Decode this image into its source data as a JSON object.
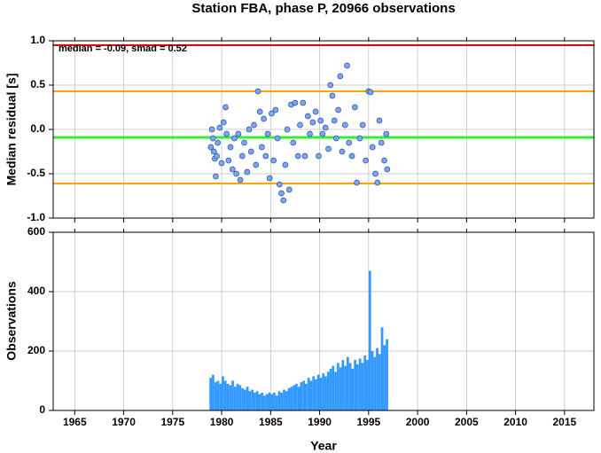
{
  "chart_data": [
    {
      "type": "scatter",
      "title": "Station FBA, phase P, 20966 observations",
      "y_label": "Median residual [s]",
      "annotation": "median = -0.09, smad = 0.52",
      "xlim": [
        1962.8,
        2018
      ],
      "xticks": [
        1965,
        1970,
        1975,
        1980,
        1985,
        1990,
        1995,
        2000,
        2005,
        2010,
        2015
      ],
      "ylim": [
        -1,
        1
      ],
      "yticks": [
        {
          "value": -1,
          "label": "-1.0"
        },
        -0.5,
        {
          "value": 0,
          "label": "0.0"
        },
        0.5,
        {
          "value": 1,
          "label": "1.0"
        }
      ],
      "grid": true,
      "color": "#7aa6f2",
      "hlines": [
        {
          "value": 0.95,
          "color": "#e00000"
        },
        {
          "value": 0.43,
          "color": "#ffa500"
        },
        {
          "value": -0.09,
          "color": "#33ee33"
        },
        {
          "value": -0.61,
          "color": "#ffa500"
        }
      ],
      "x": [
        1978.9,
        1979.0,
        1979.1,
        1979.2,
        1979.3,
        1979.4,
        1979.5,
        1979.6,
        1979.8,
        1980.0,
        1980.2,
        1980.4,
        1980.5,
        1980.7,
        1980.9,
        1981.1,
        1981.3,
        1981.5,
        1981.7,
        1981.9,
        1982.1,
        1982.3,
        1982.6,
        1982.8,
        1983.0,
        1983.3,
        1983.5,
        1983.7,
        1983.9,
        1984.1,
        1984.3,
        1984.5,
        1984.7,
        1984.9,
        1985.1,
        1985.3,
        1985.5,
        1985.7,
        1985.9,
        1986.1,
        1986.3,
        1986.5,
        1986.7,
        1986.9,
        1987.1,
        1987.3,
        1987.5,
        1987.8,
        1988.0,
        1988.3,
        1988.5,
        1988.8,
        1989.0,
        1989.3,
        1989.6,
        1989.9,
        1990.1,
        1990.3,
        1990.6,
        1990.9,
        1991.1,
        1991.3,
        1991.5,
        1991.7,
        1991.9,
        1992.1,
        1992.3,
        1992.6,
        1992.8,
        1993.0,
        1993.3,
        1993.6,
        1993.8,
        1994.1,
        1994.4,
        1994.7,
        1995.0,
        1995.2,
        1995.4,
        1995.7,
        1995.9,
        1996.1,
        1996.3,
        1996.6,
        1996.8,
        1996.9
      ],
      "values": [
        -0.2,
        0.0,
        -0.1,
        -0.25,
        -0.33,
        -0.53,
        -0.3,
        -0.15,
        0.02,
        -0.38,
        0.08,
        0.25,
        -0.05,
        -0.35,
        -0.2,
        -0.45,
        -0.1,
        -0.5,
        -0.05,
        -0.57,
        -0.3,
        -0.15,
        -0.48,
        0.0,
        -0.25,
        0.05,
        -0.4,
        0.43,
        0.2,
        -0.2,
        0.12,
        -0.3,
        -0.05,
        -0.55,
        0.18,
        -0.35,
        0.22,
        -0.1,
        -0.62,
        -0.72,
        -0.8,
        -0.4,
        0.0,
        -0.68,
        0.28,
        -0.15,
        0.3,
        -0.3,
        0.05,
        0.3,
        -0.3,
        0.15,
        -0.05,
        0.08,
        0.2,
        -0.3,
        0.1,
        -0.05,
        0.02,
        -0.22,
        0.5,
        0.38,
        0.1,
        -0.1,
        0.22,
        0.6,
        -0.25,
        0.05,
        0.72,
        -0.15,
        -0.3,
        0.25,
        -0.6,
        -0.1,
        0.05,
        -0.35,
        0.43,
        0.42,
        -0.2,
        -0.5,
        -0.6,
        0.1,
        -0.15,
        -0.35,
        -0.05,
        -0.45
      ]
    },
    {
      "type": "bar",
      "y_label": "Observations",
      "x_label": "Year",
      "xlim": [
        1962.8,
        2018
      ],
      "xticks": [
        1965,
        1970,
        1975,
        1980,
        1985,
        1990,
        1995,
        2000,
        2005,
        2010,
        2015
      ],
      "ylim": [
        0,
        600
      ],
      "yticks": [
        0,
        200,
        400,
        600
      ],
      "grid": true,
      "color": "#3399ff",
      "x": [
        1978.75,
        1979,
        1979.25,
        1979.5,
        1979.75,
        1980,
        1980.25,
        1980.5,
        1980.75,
        1981,
        1981.25,
        1981.5,
        1981.75,
        1982,
        1982.25,
        1982.5,
        1982.75,
        1983,
        1983.25,
        1983.5,
        1983.75,
        1984,
        1984.25,
        1984.5,
        1984.75,
        1985,
        1985.25,
        1985.5,
        1985.75,
        1986,
        1986.25,
        1986.5,
        1986.75,
        1987,
        1987.25,
        1987.5,
        1987.75,
        1988,
        1988.25,
        1988.5,
        1988.75,
        1989,
        1989.25,
        1989.5,
        1989.75,
        1990,
        1990.25,
        1990.5,
        1990.75,
        1991,
        1991.25,
        1991.5,
        1991.75,
        1992,
        1992.25,
        1992.5,
        1992.75,
        1993,
        1993.25,
        1993.5,
        1993.75,
        1994,
        1994.25,
        1994.5,
        1994.75,
        1995,
        1995.25,
        1995.5,
        1995.75,
        1996,
        1996.25,
        1996.5,
        1996.75
      ],
      "values": [
        110,
        120,
        95,
        100,
        90,
        115,
        100,
        90,
        85,
        100,
        80,
        90,
        85,
        75,
        70,
        80,
        65,
        70,
        60,
        65,
        55,
        60,
        50,
        55,
        60,
        55,
        60,
        50,
        65,
        60,
        70,
        65,
        75,
        80,
        85,
        90,
        80,
        95,
        100,
        90,
        110,
        100,
        115,
        105,
        120,
        110,
        125,
        115,
        130,
        140,
        150,
        130,
        160,
        145,
        170,
        150,
        180,
        160,
        140,
        170,
        155,
        175,
        160,
        185,
        170,
        470,
        200,
        180,
        210,
        190,
        280,
        220,
        240
      ]
    }
  ]
}
